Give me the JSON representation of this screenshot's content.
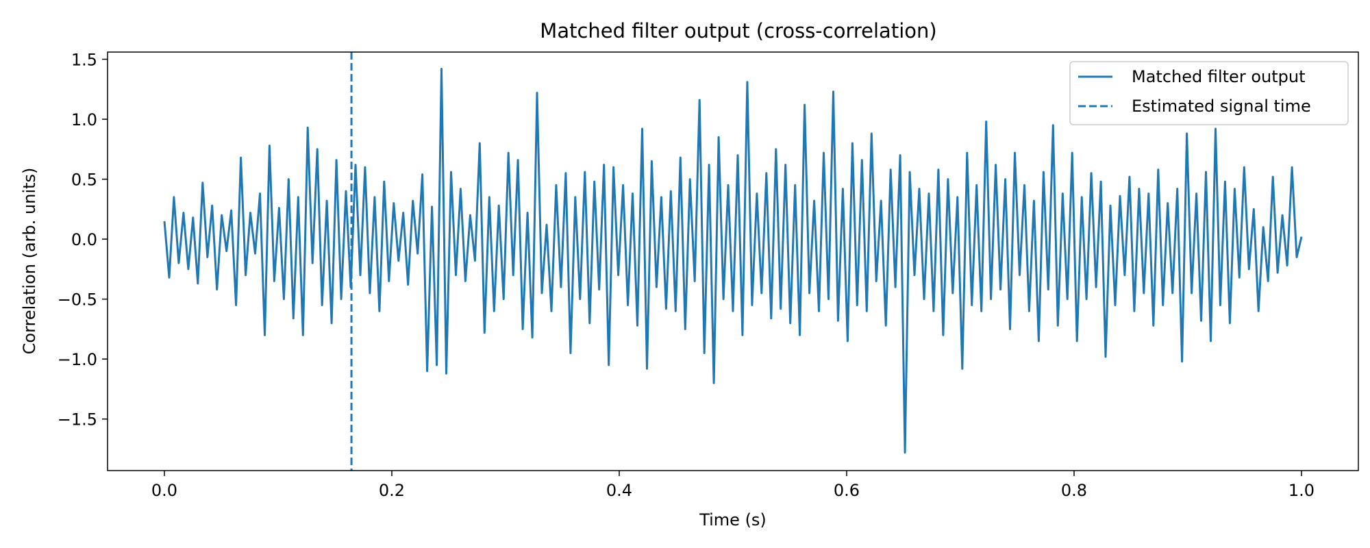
{
  "chart_data": {
    "type": "line",
    "title": "Matched filter output (cross-correlation)",
    "xlabel": "Time (s)",
    "ylabel": "Correlation (arb. units)",
    "xlim": [
      -0.05,
      1.05
    ],
    "ylim": [
      -1.93,
      1.56
    ],
    "xticks": [
      0.0,
      0.2,
      0.4,
      0.6,
      0.8,
      1.0
    ],
    "xtick_labels": [
      "0.0",
      "0.2",
      "0.4",
      "0.6",
      "0.8",
      "1.0"
    ],
    "yticks": [
      -1.5,
      -1.0,
      -0.5,
      0.0,
      0.5,
      1.0,
      1.5
    ],
    "ytick_labels": [
      "−1.5",
      "−1.0",
      "−0.5",
      "0.0",
      "0.5",
      "1.0",
      "1.5"
    ],
    "grid": false,
    "legend_position": "top-right",
    "line_color": "#1f77b4",
    "series": [
      {
        "name": "Matched filter output",
        "style": "solid",
        "x_start": 0.0,
        "x_end": 1.0,
        "y": [
          0.15,
          -0.32,
          0.35,
          -0.2,
          0.22,
          -0.25,
          0.18,
          -0.37,
          0.47,
          -0.15,
          0.28,
          -0.42,
          0.2,
          -0.1,
          0.24,
          -0.55,
          0.68,
          -0.3,
          0.22,
          -0.12,
          0.38,
          -0.8,
          0.78,
          -0.35,
          0.26,
          -0.5,
          0.5,
          -0.66,
          0.35,
          -0.8,
          0.93,
          -0.2,
          0.75,
          -0.55,
          0.32,
          -0.7,
          0.66,
          -0.5,
          0.4,
          -0.4,
          0.62,
          -0.3,
          0.6,
          -0.45,
          0.35,
          -0.6,
          0.48,
          -0.35,
          0.3,
          -0.18,
          0.22,
          -0.38,
          0.32,
          -0.12,
          0.54,
          -1.1,
          0.27,
          -1.05,
          1.42,
          -1.12,
          0.56,
          -0.3,
          0.42,
          -0.35,
          0.2,
          -0.18,
          0.8,
          -0.78,
          0.35,
          -0.6,
          0.28,
          -0.5,
          0.72,
          -0.3,
          0.66,
          -0.75,
          0.22,
          -0.82,
          1.22,
          -0.45,
          0.12,
          -0.6,
          0.45,
          -0.4,
          0.55,
          -0.95,
          0.35,
          -0.5,
          0.56,
          -0.7,
          0.48,
          -0.42,
          0.62,
          -1.05,
          0.6,
          -0.3,
          0.45,
          -0.55,
          0.38,
          -0.72,
          0.92,
          -1.08,
          0.65,
          -0.4,
          0.35,
          -0.58,
          0.4,
          -0.6,
          0.68,
          -0.75,
          0.5,
          -0.35,
          1.16,
          -0.95,
          0.62,
          -1.2,
          0.85,
          -0.5,
          0.45,
          -0.6,
          0.7,
          -0.8,
          1.31,
          -0.55,
          0.38,
          -0.45,
          0.55,
          -0.66,
          0.75,
          -0.58,
          0.62,
          -0.7,
          0.45,
          -0.8,
          1.12,
          -0.45,
          0.32,
          -0.6,
          0.72,
          -0.5,
          1.23,
          -0.68,
          0.42,
          -0.85,
          0.8,
          -0.55,
          0.66,
          -0.6,
          0.88,
          -0.35,
          0.32,
          -0.72,
          0.58,
          -0.4,
          0.7,
          -1.78,
          0.56,
          -0.3,
          0.42,
          -0.5,
          0.38,
          -0.6,
          0.58,
          -0.8,
          0.5,
          -0.45,
          0.35,
          -1.08,
          0.72,
          -0.55,
          0.45,
          -0.6,
          0.98,
          -0.5,
          0.62,
          -0.42,
          0.5,
          -0.75,
          0.72,
          -0.3,
          0.45,
          -0.6,
          0.32,
          -0.85,
          0.56,
          -0.42,
          0.95,
          -0.72,
          0.38,
          -0.5,
          0.72,
          -0.85,
          0.35,
          -0.5,
          0.55,
          -0.4,
          0.48,
          -0.98,
          0.28,
          -0.55,
          0.36,
          -0.3,
          0.52,
          -0.6,
          0.42,
          -0.45,
          0.38,
          -0.72,
          0.58,
          -0.55,
          0.3,
          -0.45,
          0.42,
          -1.02,
          0.88,
          -0.45,
          0.38,
          -0.68,
          0.56,
          -0.85,
          0.92,
          -0.55,
          0.48,
          -0.7,
          0.42,
          -0.32,
          0.6,
          -0.25,
          0.25,
          -0.6,
          0.1,
          -0.35,
          0.52,
          -0.28,
          0.2,
          -0.22,
          0.6,
          -0.15,
          0.02
        ]
      },
      {
        "name": "Estimated signal time",
        "style": "dashed",
        "x": 0.1645
      }
    ]
  }
}
